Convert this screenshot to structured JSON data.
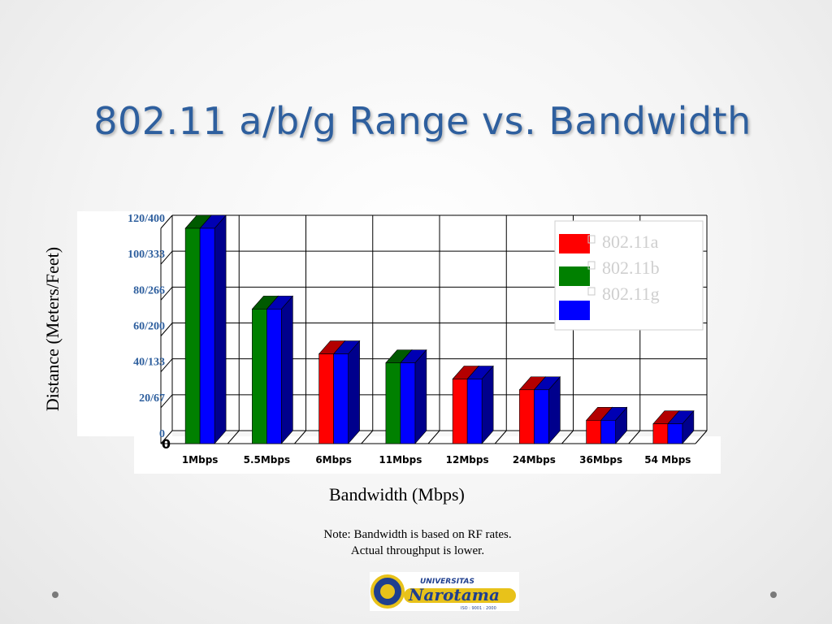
{
  "slide": {
    "title": "802.11 a/b/g Range vs. Bandwidth",
    "note_line1": "Note: Bandwidth is based on RF rates.",
    "note_line2": "Actual throughput is lower.",
    "logo_text": "Universitas Narotama",
    "logo_iso": "ISO : 9001 : 2000"
  },
  "chart_data": {
    "type": "bar",
    "ylabel": "Distance (Meters/Feet)",
    "xlabel": "Bandwidth (Mbps)",
    "categories": [
      "1Mbps",
      "5.5Mbps",
      "6Mbps",
      "11Mbps",
      "12Mbps",
      "24Mbps",
      "36Mbps",
      "54 Mbps"
    ],
    "y_tick_labels": [
      "120/400",
      "100/333",
      "80/266",
      "60/200",
      "40/133",
      "20/67",
      "0"
    ],
    "y_tick_values": [
      120,
      100,
      80,
      60,
      40,
      20,
      0
    ],
    "axis_zero_label": "0",
    "ylim": [
      0,
      120
    ],
    "grid": true,
    "legend_position": "top-right",
    "series": [
      {
        "name": "802.11a",
        "color": "#ff0000",
        "values": [
          null,
          null,
          50,
          null,
          36,
          30,
          13,
          11
        ]
      },
      {
        "name": "802.11b",
        "color": "#008000",
        "values": [
          120,
          75,
          null,
          45,
          null,
          null,
          null,
          null
        ]
      },
      {
        "name": "802.11g",
        "color": "#0000ff",
        "values": [
          120,
          75,
          50,
          45,
          36,
          30,
          13,
          11
        ]
      }
    ]
  }
}
